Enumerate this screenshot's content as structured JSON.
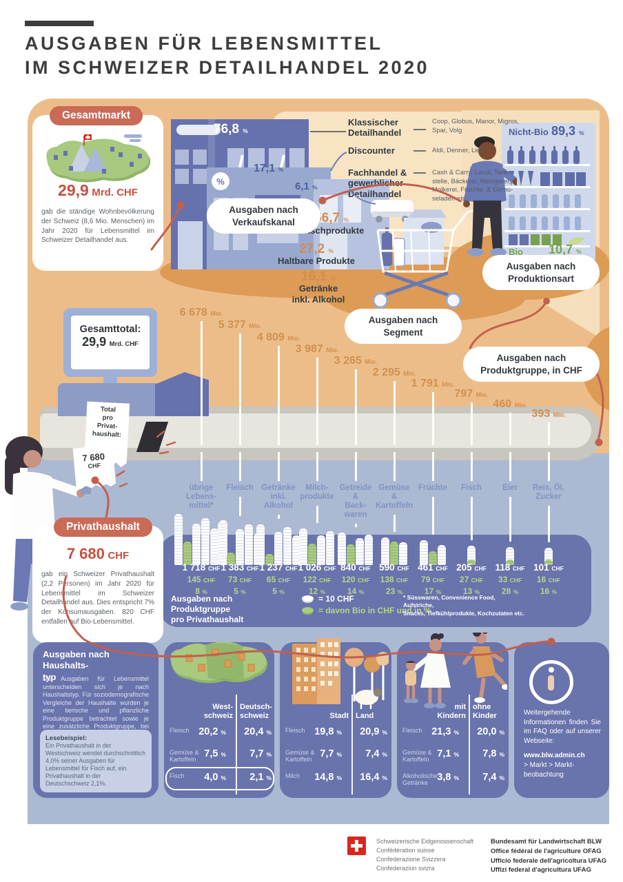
{
  "units": {
    "pct": "%",
    "chf": "CHF",
    "mio": "Mio."
  },
  "title": {
    "line1": "AUSGABEN FÜR LEBENSMITTEL",
    "line2": "IM SCHWEIZER DETAILHANDEL 2020"
  },
  "gesamtmarkt": {
    "badge": "Gesamtmarkt",
    "value": "29,9",
    "unit": "Mrd. CHF",
    "body": "gab die ständige Wohnbevölkerung der Schweiz (8,6 Mio. Menschen) im Jahr 2020 für Lebensmittel im Schweizer Detailhandel aus."
  },
  "verkaufskanal": {
    "badge": "Ausgaben nach\nVerkaufskanal",
    "channels": [
      {
        "label": "Klassischer\nDetailhandel",
        "pct": "76,8",
        "examples": "Coop, Globus, Manor, Migros,\nSpar, Volg"
      },
      {
        "label": "Discounter",
        "pct": "17,1",
        "examples": "Aldi, Denner, Lidl"
      },
      {
        "label": "Fachhandel &\ngewerblicher\nDetailhandel",
        "pct": "6,1",
        "examples": "Cash & Carry, Landi, Tank-\nstelle, Bäckerei, Metzgerei,\nMolkerei, Früchte- & Gemü-\nseladen etc."
      }
    ]
  },
  "segment": {
    "badge": "Ausgaben nach\nSegment",
    "items": [
      {
        "pct": "56,7",
        "label": "Frischprodukte"
      },
      {
        "pct": "27,2",
        "label": "Haltbare Produkte"
      },
      {
        "pct": "16,1",
        "label": "Getränke\ninkl. Alkohol"
      }
    ]
  },
  "produktionsart": {
    "badge": "Ausgaben nach\nProduktionsart",
    "nicht_bio": {
      "label": "Nicht-Bio",
      "pct": "89,3"
    },
    "bio": {
      "label": "Bio",
      "pct": "10,7"
    }
  },
  "gesamttotal": {
    "label": "Gesamttotal:",
    "value": "29,9",
    "unit": "Mrd. CHF"
  },
  "receipt": {
    "header": "Total\npro\nPrivat-\nhaushalt:",
    "value": "7 680",
    "unit": "CHF"
  },
  "produktgruppe": {
    "badge": "Ausgaben nach\nProduktgruppe, in CHF",
    "groups": [
      {
        "label": "übrige\nLebens-\nmittel*",
        "mio": "6 678",
        "total": "1 718",
        "total_n": 1718,
        "bio": "145",
        "bio_n": 145,
        "bio_pct": "8"
      },
      {
        "label": "Fleisch",
        "mio": "5 377",
        "total": "1 383",
        "total_n": 1383,
        "bio": "73",
        "bio_n": 73,
        "bio_pct": "5"
      },
      {
        "label": "Getränke\ninkl.\nAlkohol",
        "mio": "4 809",
        "total": "1 237",
        "total_n": 1237,
        "bio": "65",
        "bio_n": 65,
        "bio_pct": "5"
      },
      {
        "label": "Milch-\nprodukte",
        "mio": "3 987",
        "total": "1 026",
        "total_n": 1026,
        "bio": "122",
        "bio_n": 122,
        "bio_pct": "12"
      },
      {
        "label": "Getreide\n&\nBack-\nwaren",
        "mio": "3 265",
        "total": "840",
        "total_n": 840,
        "bio": "120",
        "bio_n": 120,
        "bio_pct": "14"
      },
      {
        "label": "Gemüse\n&\nKartoffeln",
        "mio": "2 295",
        "total": "590",
        "total_n": 590,
        "bio": "138",
        "bio_n": 138,
        "bio_pct": "23"
      },
      {
        "label": "Früchte",
        "mio": "1 791",
        "total": "461",
        "total_n": 461,
        "bio": "79",
        "bio_n": 79,
        "bio_pct": "17"
      },
      {
        "label": "Fisch",
        "mio": "797",
        "total": "205",
        "total_n": 205,
        "bio": "27",
        "bio_n": 27,
        "bio_pct": "13"
      },
      {
        "label": "Eier",
        "mio": "460",
        "total": "118",
        "total_n": 118,
        "bio": "33",
        "bio_n": 33,
        "bio_pct": "28"
      },
      {
        "label": "Reis, Öl,\nZucker",
        "mio": "393",
        "total": "101",
        "total_n": 101,
        "bio": "16",
        "bio_n": 16,
        "bio_pct": "16"
      }
    ],
    "legend": {
      "left": "Ausgaben nach Produktgruppe\npro Privathaushalt",
      "coin_white": "= 10 CHF",
      "coin_green": "= davon Bio in CHF und in %",
      "footnote": "* Süsswaren, Convenience Food, Aufstriche,\nSnacks, Tiefkühlprodukte, Kochzutaten etc."
    }
  },
  "privathaushalt": {
    "badge": "Privathaushalt",
    "value": "7 680",
    "unit": "CHF",
    "body": "gab ein Schweizer Privathaushalt (2,2 Personen) im Jahr 2020 für Lebensmittel im Schweizer Detailhandel aus. Dies entspricht 7% der Konsumausgaben. 820 CHF entfallen auf Bio-Lebensmittel."
  },
  "haushaltstyp": {
    "heading": "Ausgaben nach Haushalts-\ntyp",
    "body": "Die Ausgaben für Lebensmittel unterscheiden sich je nach Haushaltstyp. Für soziodemografische Vergleiche der Haushalte wurden je eine tierische und pflanzliche Produktgruppe betrachtet sowie je eine zusätzliche Produktgruppe, bei der Unterschiede besonders deutlich sind.",
    "lesebeispiel_title": "Lesebeispiel:",
    "lesebeispiel_body": "Ein Privathaushalt in der Westschweiz wendet durchschnittlich 4,0% seiner Ausgaben für Lebensmittel für Fisch auf, ein Privathaushalt in der Deutschschweiz 2,1%.",
    "tables": [
      {
        "col1": "West-\nschweiz",
        "col2": "Deutsch-\nschweiz",
        "rows": [
          {
            "label": "Fleisch",
            "v1": "20,2",
            "v2": "20,4",
            "hl": false
          },
          {
            "label": "Gemüse &\nKartoffeln",
            "v1": "7,5",
            "v2": "7,7",
            "hl": false
          },
          {
            "label": "Fisch",
            "v1": "4,0",
            "v2": "2,1",
            "hl": true
          }
        ]
      },
      {
        "col1": "Stadt",
        "col2": "Land",
        "rows": [
          {
            "label": "Fleisch",
            "v1": "19,8",
            "v2": "20,9",
            "hl": false
          },
          {
            "label": "Gemüse &\nKartoffeln",
            "v1": "7,7",
            "v2": "7,4",
            "hl": false
          },
          {
            "label": "Milch",
            "v1": "14,8",
            "v2": "16,4",
            "hl": false
          }
        ]
      },
      {
        "col1": "mit\nKindern",
        "col2": "ohne\nKinder",
        "rows": [
          {
            "label": "Fleisch",
            "v1": "21,3",
            "v2": "20,0",
            "hl": false
          },
          {
            "label": "Gemüse &\nKartoffeln",
            "v1": "7,1",
            "v2": "7,8",
            "hl": false
          },
          {
            "label": "Alkoholische\nGetränke",
            "v1": "3,8",
            "v2": "7,4",
            "hl": false
          }
        ]
      }
    ]
  },
  "info": {
    "body": "Weitergehende Informationen finden Sie im FAQ oder auf unserer Webseite:",
    "url": "www.blw.admin.ch",
    "path": "> Markt > Markt-\nbeobachtung"
  },
  "footer": {
    "confederation": "Schweizerische Eidgenossenschaft\nConfédération suisse\nConfederazione Svizzera\nConfederaziun svizra",
    "office": "Bundesamt für Landwirtschaft BLW\nOffice fédéral de l'agriculture OFAG\nUfficio federale dell'agricoltura UFAG\nUffizi federal d'agricultura UFAG"
  },
  "colors": {
    "accent_red": "#c2604e",
    "badge_red": "#c96b57",
    "value_red": "#c5503e",
    "orange_bg": "#edbd89",
    "ellipse_orange": "#dd9b55",
    "blue_bg": "#acb9d3",
    "panel_blue": "#6973ac",
    "bio_green": "#a9cb7d",
    "number_orange": "#cf9053",
    "steel_blue": "#8093c2"
  },
  "chart_data": [
    {
      "type": "bar",
      "title": "Ausgaben nach Verkaufskanal",
      "unit": "%",
      "categories": [
        "Klassischer Detailhandel",
        "Discounter",
        "Fachhandel & gewerblicher Detailhandel"
      ],
      "values": [
        76.8,
        17.1,
        6.1
      ]
    },
    {
      "type": "bar",
      "title": "Ausgaben nach Segment",
      "unit": "%",
      "categories": [
        "Frischprodukte",
        "Haltbare Produkte",
        "Getränke inkl. Alkohol"
      ],
      "values": [
        56.7,
        27.2,
        16.1
      ]
    },
    {
      "type": "pie",
      "title": "Ausgaben nach Produktionsart",
      "unit": "%",
      "categories": [
        "Nicht-Bio",
        "Bio"
      ],
      "values": [
        89.3,
        10.7
      ]
    },
    {
      "type": "bar",
      "title": "Ausgaben nach Produktgruppe, in CHF",
      "unit": "Mio. CHF",
      "categories": [
        "übrige Lebensmittel*",
        "Fleisch",
        "Getränke inkl. Alkohol",
        "Milchprodukte",
        "Getreide & Backwaren",
        "Gemüse & Kartoffeln",
        "Früchte",
        "Fisch",
        "Eier",
        "Reis, Öl, Zucker"
      ],
      "values": [
        6678,
        5377,
        4809,
        3987,
        3265,
        2295,
        1791,
        797,
        460,
        393
      ]
    },
    {
      "type": "bar",
      "title": "Ausgaben nach Produktgruppe pro Privathaushalt",
      "unit": "CHF",
      "categories": [
        "übrige Lebensmittel*",
        "Fleisch",
        "Getränke inkl. Alkohol",
        "Milchprodukte",
        "Getreide & Backwaren",
        "Gemüse & Kartoffeln",
        "Früchte",
        "Fisch",
        "Eier",
        "Reis, Öl, Zucker"
      ],
      "series": [
        {
          "name": "Total CHF",
          "values": [
            1718,
            1383,
            1237,
            1026,
            840,
            590,
            461,
            205,
            118,
            101
          ]
        },
        {
          "name": "davon Bio CHF",
          "values": [
            145,
            73,
            65,
            122,
            120,
            138,
            79,
            27,
            33,
            16
          ]
        },
        {
          "name": "Bio-Anteil %",
          "values": [
            8,
            5,
            5,
            12,
            14,
            23,
            17,
            13,
            28,
            16
          ]
        }
      ]
    },
    {
      "type": "table",
      "title": "Ausgaben nach Haushaltstyp (Anteil an Lebensmittelausgaben, %)",
      "columns": [
        "Westschweiz",
        "Deutschschweiz",
        "Stadt",
        "Land",
        "mit Kindern",
        "ohne Kinder"
      ],
      "rows": [
        {
          "label": "Fleisch",
          "values": [
            20.2,
            20.4,
            19.8,
            20.9,
            21.3,
            20.0
          ]
        },
        {
          "label": "Gemüse & Kartoffeln",
          "values": [
            7.5,
            7.7,
            7.7,
            7.4,
            7.1,
            7.8
          ]
        },
        {
          "label": "Fisch",
          "values": [
            4.0,
            2.1,
            null,
            null,
            null,
            null
          ]
        },
        {
          "label": "Milch",
          "values": [
            null,
            null,
            14.8,
            16.4,
            null,
            null
          ]
        },
        {
          "label": "Alkoholische Getränke",
          "values": [
            null,
            null,
            null,
            null,
            3.8,
            7.4
          ]
        }
      ]
    }
  ]
}
